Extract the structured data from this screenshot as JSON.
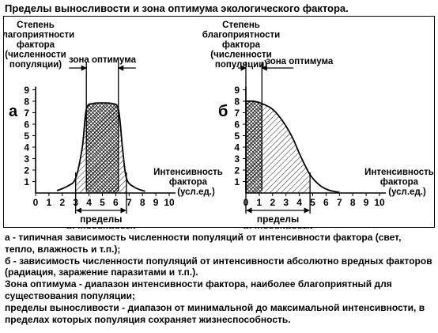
{
  "title": "Пределы выносливости и зона оптимума экологического фактора.",
  "panels": [
    {
      "letter": "а",
      "ylabel": [
        "Степень",
        "благоприятности",
        "фактора",
        "(численности",
        "популяции)"
      ],
      "xlabel": [
        "Интенсивность",
        "фактора",
        "(усл.ед.)"
      ],
      "optimum_label": "зона оптимума",
      "limits_label": [
        "пределы",
        "выносливости"
      ],
      "y_ticks": [
        "1",
        "2",
        "3",
        "4",
        "5",
        "6",
        "7",
        "8",
        "9"
      ],
      "x_ticks": [
        "0",
        "1",
        "2",
        "3",
        "4",
        "5",
        "6",
        "7",
        "8",
        "9",
        "10"
      ],
      "optimum_range": [
        3.8,
        6.2
      ],
      "tolerance_range": [
        3,
        6.8
      ],
      "curve": [
        [
          1.6,
          0.2
        ],
        [
          2.4,
          0.6
        ],
        [
          3,
          1.3
        ],
        [
          3.5,
          4
        ],
        [
          3.8,
          7.3
        ],
        [
          4.3,
          7.8
        ],
        [
          5,
          7.85
        ],
        [
          5.7,
          7.8
        ],
        [
          6.2,
          7.3
        ],
        [
          6.5,
          4
        ],
        [
          6.8,
          1.3
        ],
        [
          7.4,
          0.5
        ],
        [
          8.2,
          0.15
        ]
      ]
    },
    {
      "letter": "б",
      "ylabel": [
        "Степень",
        "благоприятности",
        "фактора",
        "(численности",
        "популяции)"
      ],
      "xlabel": [
        "Интенсивность",
        "фактора",
        "(усл.ед.)"
      ],
      "optimum_label": "зона оптимума",
      "limits_label": [
        "пределы",
        "выносливости"
      ],
      "y_ticks": [
        "1",
        "2",
        "3",
        "4",
        "5",
        "6",
        "7",
        "8",
        "9"
      ],
      "x_ticks": [
        "0",
        "1",
        "2",
        "3",
        "4",
        "5",
        "6",
        "7",
        "8",
        "9",
        "10"
      ],
      "optimum_range": [
        0,
        1.2
      ],
      "tolerance_range": [
        0,
        4.8
      ],
      "curve": [
        [
          0,
          8
        ],
        [
          0.6,
          8
        ],
        [
          1.2,
          7.8
        ],
        [
          2,
          7.3
        ],
        [
          2.8,
          6.2
        ],
        [
          3.5,
          4.8
        ],
        [
          4.1,
          3.2
        ],
        [
          4.8,
          1.6
        ],
        [
          5.5,
          0.7
        ],
        [
          6.2,
          0.25
        ],
        [
          7,
          0.05
        ]
      ]
    }
  ],
  "caption": [
    "а - типичная зависимость численности популяций от интенсивности фактора (свет, тепло, влажность и т.п.);",
    "б - зависимость численности популяций от интенсивности абсолютно вредных факторов (радиация, заражение паразитами и т.п.).",
    "Зона оптимума - диапазон интенсивности фактора, наиболее благоприятный для существования популяции;",
    "пределы выносливости - диапазон от минимальной до максимальной интенсивности, в пределах которых популяция сохраняет жизнеспособность."
  ]
}
